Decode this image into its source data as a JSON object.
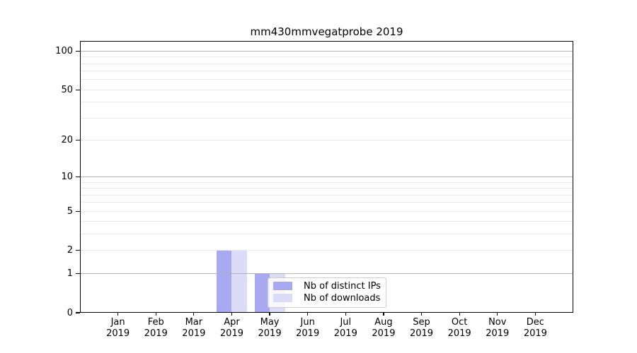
{
  "title": "mm430mmvegatprobe 2019",
  "chart_data": {
    "type": "bar",
    "title": "mm430mmvegatprobe 2019",
    "categories": [
      "Jan",
      "Feb",
      "Mar",
      "Apr",
      "May",
      "Jun",
      "Jul",
      "Aug",
      "Sep",
      "Oct",
      "Nov",
      "Dec"
    ],
    "category_year": "2019",
    "series": [
      {
        "name": "Nb of distinct IPs",
        "color": "#a9a9f1",
        "values": [
          0,
          0,
          0,
          2,
          1,
          0,
          0,
          0,
          0,
          0,
          0,
          0
        ]
      },
      {
        "name": "Nb of downloads",
        "color": "#dcdcf8",
        "values": [
          0,
          0,
          0,
          2,
          1,
          0,
          0,
          0,
          0,
          0,
          0,
          0
        ]
      }
    ],
    "yscale": "log1p",
    "ylim": [
      0,
      120
    ],
    "ytick_values": [
      0,
      1,
      2,
      5,
      10,
      20,
      50,
      100
    ],
    "ytick_labels": [
      "0",
      "1",
      "2",
      "5",
      "10",
      "20",
      "50",
      "100"
    ],
    "grid": "on",
    "grid_minor_values": [
      2,
      3,
      4,
      5,
      6,
      7,
      8,
      9,
      20,
      30,
      40,
      50,
      60,
      70,
      80,
      90
    ],
    "grid_decade_values": [
      1,
      10,
      100
    ],
    "legend_position": "lower center-right inside plot",
    "style": {
      "grid_minor_color": "#e9e9e9",
      "grid_decade_color": "#b3b3b3",
      "spine_color": "#000000",
      "tick_color": "#000000",
      "legend_border_color": "#cccccc",
      "legend_background": "rgba(255,255,255,0.8)",
      "background": "#ffffff"
    }
  }
}
